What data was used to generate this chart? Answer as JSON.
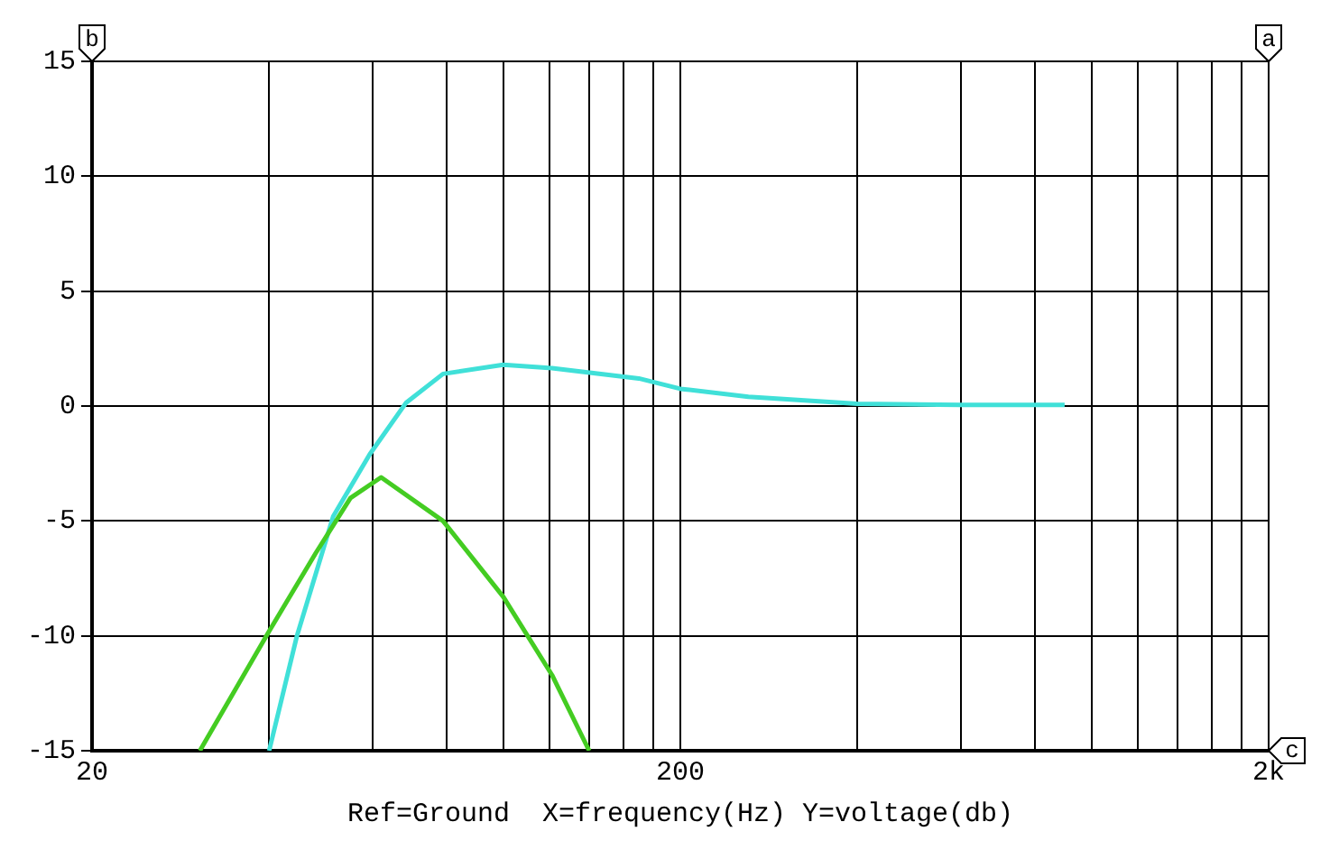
{
  "chart_data": {
    "type": "line",
    "xlabel": "Ref=Ground  X=frequency(Hz) Y=voltage(db)",
    "log": "x",
    "grid": true,
    "marker": "none",
    "line_style": "solid",
    "legend": false,
    "xlim": [
      20,
      2000
    ],
    "xticks": [
      20,
      {
        "value": 40,
        "label": null
      },
      {
        "value": 60,
        "label": null
      },
      {
        "value": 80,
        "label": null
      },
      {
        "value": 100,
        "label": null
      },
      {
        "value": 120,
        "label": null
      },
      {
        "value": 140,
        "label": null
      },
      {
        "value": 160,
        "label": null
      },
      {
        "value": 180,
        "label": null
      },
      200,
      {
        "value": 400,
        "label": null
      },
      {
        "value": 600,
        "label": null
      },
      {
        "value": 800,
        "label": null
      },
      {
        "value": 1000,
        "label": null
      },
      {
        "value": 1200,
        "label": null
      },
      {
        "value": 1400,
        "label": null
      },
      {
        "value": 1600,
        "label": null
      },
      {
        "value": 1800,
        "label": null
      },
      {
        "value": 2000,
        "label": "2k"
      }
    ],
    "ylim": [
      -15,
      15
    ],
    "yticks": [
      -15,
      -10,
      -5,
      0,
      5,
      10,
      15
    ],
    "annotations": [
      "b",
      "a",
      "c"
    ],
    "series": [
      {
        "color": "#44cc22",
        "x": [
          30.5,
          40,
          48,
          55,
          62,
          79,
          100,
          121,
          140
        ],
        "values": [
          -15,
          -9.8,
          -6.4,
          -4,
          -3.1,
          -5,
          -8.3,
          -11.7,
          -15
        ]
      },
      {
        "color": "#40e0d8",
        "x": [
          40,
          44.6,
          51.4,
          59.3,
          68.4,
          79,
          100,
          121,
          170,
          200,
          261,
          400,
          600,
          900
        ],
        "values": [
          -15,
          -10,
          -4.8,
          -2.1,
          0.15,
          1.4,
          1.8,
          1.65,
          1.2,
          0.75,
          0.4,
          0.1,
          0.05,
          0.05
        ]
      }
    ]
  }
}
